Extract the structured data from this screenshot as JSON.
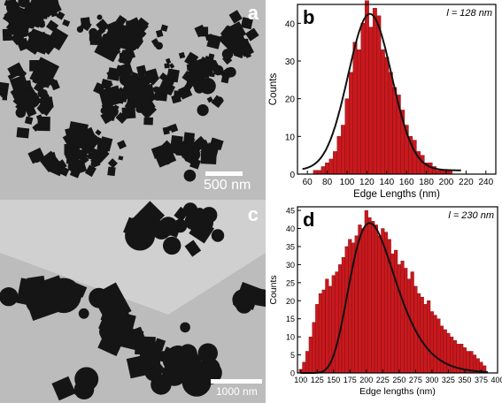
{
  "tem_a": {
    "panel_label": "a",
    "scale_label": "500 nm"
  },
  "tem_c": {
    "panel_label": "c",
    "scale_label": "1000 nm"
  },
  "colors": {
    "bar_fill": "#c8191e",
    "bar_stroke": "#7a0a0a",
    "fit_line": "#111111",
    "tem_background": "#bcbcbc",
    "particle": "#151515"
  },
  "chart_data": [
    {
      "type": "bar",
      "panel_label": "b",
      "annotation": "l = 128 nm",
      "xlabel": "Edge Lengths (nm)",
      "ylabel": "Counts",
      "xlim": [
        50,
        250
      ],
      "ylim": [
        0,
        45
      ],
      "xticks": [
        60,
        80,
        100,
        120,
        140,
        160,
        180,
        200,
        220,
        240
      ],
      "yticks": [
        0,
        10,
        20,
        30,
        40
      ],
      "bin_width": 4,
      "bins": [
        68,
        72,
        76,
        80,
        84,
        88,
        92,
        96,
        100,
        104,
        108,
        112,
        116,
        120,
        124,
        128,
        132,
        136,
        140,
        144,
        148,
        152,
        156,
        160,
        164,
        168,
        172,
        176,
        180,
        184,
        188,
        192,
        196,
        200,
        204
      ],
      "values": [
        1,
        1,
        2,
        3,
        4,
        6,
        10,
        13,
        20,
        27,
        35,
        33,
        40,
        46,
        39,
        44,
        42,
        33,
        31,
        27,
        23,
        21,
        17,
        13,
        10,
        9,
        6,
        5,
        3,
        3,
        2,
        1,
        1,
        1,
        1
      ],
      "fit": {
        "type": "gaussian",
        "center": 123,
        "sigma": 22,
        "amplitude": 42.5,
        "baseline": 1,
        "range": [
          55,
          215
        ]
      },
      "grid": false,
      "legend": "none"
    },
    {
      "type": "bar",
      "panel_label": "d",
      "annotation": "l = 230 nm",
      "xlabel": "Edge lengths (nm)",
      "ylabel": "Counts",
      "xlim": [
        95,
        400
      ],
      "ylim": [
        0,
        46
      ],
      "xticks": [
        100,
        125,
        150,
        175,
        200,
        225,
        250,
        275,
        300,
        325,
        350,
        375,
        400
      ],
      "yticks": [
        0,
        5,
        10,
        15,
        20,
        25,
        30,
        35,
        40,
        45
      ],
      "bin_width": 5,
      "bins": [
        100,
        105,
        110,
        115,
        120,
        125,
        130,
        135,
        140,
        145,
        150,
        155,
        160,
        165,
        170,
        175,
        180,
        185,
        190,
        195,
        200,
        205,
        210,
        215,
        220,
        225,
        230,
        235,
        240,
        245,
        250,
        255,
        260,
        265,
        270,
        275,
        280,
        285,
        290,
        295,
        300,
        305,
        310,
        315,
        320,
        325,
        330,
        335,
        340,
        345,
        350,
        355,
        360,
        365,
        370,
        375,
        380
      ],
      "values": [
        1,
        3,
        6,
        10,
        14,
        19,
        22,
        23,
        26,
        24,
        27,
        28,
        30,
        32,
        35,
        37,
        36,
        38,
        41,
        40,
        45,
        43,
        42,
        41,
        38,
        40,
        39,
        37,
        33,
        34,
        30,
        31,
        29,
        26,
        28,
        24,
        22,
        21,
        19,
        20,
        17,
        16,
        15,
        13,
        12,
        11,
        10,
        9,
        8,
        8,
        7,
        6,
        6,
        5,
        4,
        3,
        2
      ],
      "fit": {
        "type": "lognormal",
        "mode": 205,
        "amplitude": 41.5,
        "range": [
          100,
          385
        ]
      },
      "grid": false,
      "legend": "none"
    }
  ]
}
